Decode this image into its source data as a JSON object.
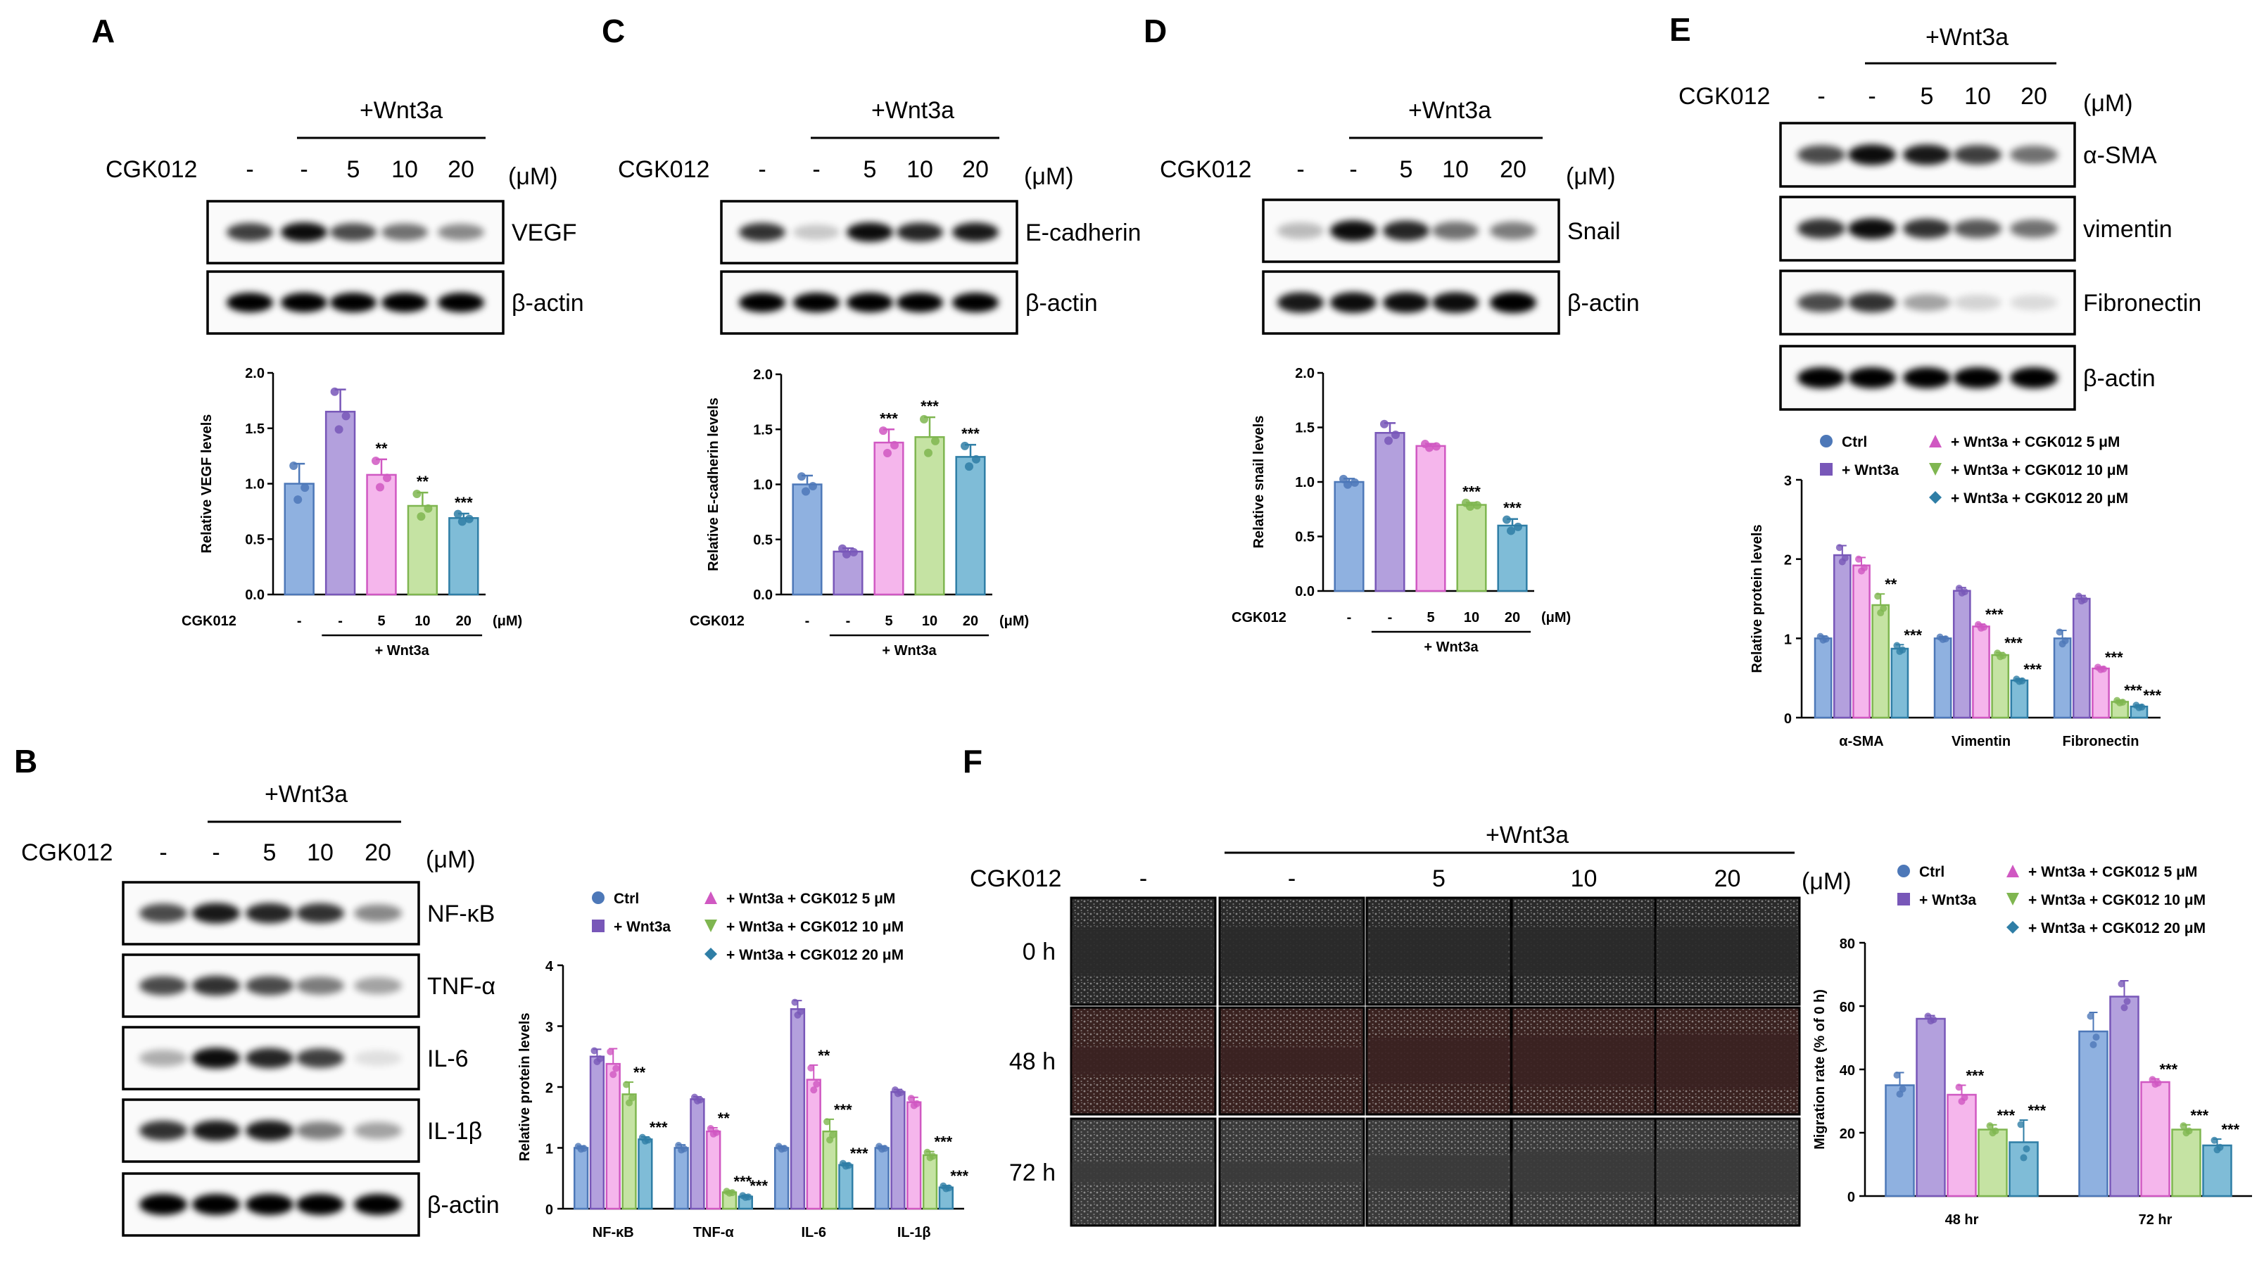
{
  "colors": {
    "ctrl": "#8fb1e0",
    "ctrl_edge": "#4d78b8",
    "wnt": "#b3a0dd",
    "wnt_edge": "#7857b8",
    "c5": "#f5b6ec",
    "c5_edge": "#d058c2",
    "c10": "#c5e3a3",
    "c10_edge": "#7fb650",
    "c20": "#7fbcd7",
    "c20_edge": "#2f7ea6"
  },
  "panels": {
    "A": {
      "label": "A",
      "wnt_label": "+Wnt3a",
      "cgk_label": "CGK012",
      "doses": [
        "-",
        "-",
        "5",
        "10",
        "20"
      ],
      "unit": "(μM)",
      "blots": [
        "VEGF",
        "β-actin"
      ],
      "chart_data": {
        "type": "bar",
        "categories": [
          "-",
          "-",
          "5",
          "10",
          "20"
        ],
        "values": [
          1.0,
          1.65,
          1.08,
          0.8,
          0.69
        ],
        "errors": [
          0.18,
          0.2,
          0.14,
          0.12,
          0.04
        ],
        "significance": [
          "",
          "",
          "**",
          "**",
          "***"
        ],
        "ylabel": "Relative VEGF levels",
        "ylim": [
          0,
          2.0
        ],
        "yticks": [
          "0.0",
          "0.5",
          "1.0",
          "1.5",
          "2.0"
        ],
        "xlabel_prefix": "CGK012",
        "xunit": "(μM)",
        "group_label": "+ Wnt3a"
      }
    },
    "C": {
      "label": "C",
      "wnt_label": "+Wnt3a",
      "cgk_label": "CGK012",
      "doses": [
        "-",
        "-",
        "5",
        "10",
        "20"
      ],
      "unit": "(μM)",
      "blots": [
        "E-cadherin",
        "β-actin"
      ],
      "chart_data": {
        "type": "bar",
        "categories": [
          "-",
          "-",
          "5",
          "10",
          "20"
        ],
        "values": [
          1.0,
          0.39,
          1.38,
          1.43,
          1.25
        ],
        "errors": [
          0.08,
          0.03,
          0.12,
          0.18,
          0.11
        ],
        "significance": [
          "",
          "",
          "***",
          "***",
          "***"
        ],
        "ylabel": "Relative E-cadherin levels",
        "ylim": [
          0,
          2.0
        ],
        "yticks": [
          "0.0",
          "0.5",
          "1.0",
          "1.5",
          "2.0"
        ],
        "xlabel_prefix": "CGK012",
        "xunit": "(μM)",
        "group_label": "+ Wnt3a"
      }
    },
    "D": {
      "label": "D",
      "wnt_label": "+Wnt3a",
      "cgk_label": "CGK012",
      "doses": [
        "-",
        "-",
        "5",
        "10",
        "20"
      ],
      "unit": "(μM)",
      "blots": [
        "Snail",
        "β-actin"
      ],
      "chart_data": {
        "type": "bar",
        "categories": [
          "-",
          "-",
          "5",
          "10",
          "20"
        ],
        "values": [
          1.0,
          1.45,
          1.33,
          0.79,
          0.6
        ],
        "errors": [
          0.03,
          0.09,
          0.02,
          0.02,
          0.06
        ],
        "significance": [
          "",
          "",
          "",
          "***",
          "***"
        ],
        "ylabel": "Relative snail levels",
        "ylim": [
          0,
          2.0
        ],
        "yticks": [
          "0.0",
          "0.5",
          "1.0",
          "1.5",
          "2.0"
        ],
        "xlabel_prefix": "CGK012",
        "xunit": "(μM)",
        "group_label": "+ Wnt3a"
      }
    },
    "E": {
      "label": "E",
      "wnt_label": "+Wnt3a",
      "cgk_label": "CGK012",
      "doses": [
        "-",
        "-",
        "5",
        "10",
        "20"
      ],
      "unit": "(μM)",
      "blots": [
        "α-SMA",
        "vimentin",
        "Fibronectin",
        "β-actin"
      ],
      "chart_data": {
        "type": "bar",
        "categories": [
          "α-SMA",
          "Vimentin",
          "Fibronectin"
        ],
        "series": [
          {
            "name": "Ctrl",
            "values": [
              1.0,
              1.0,
              1.0
            ],
            "errors": [
              0.03,
              0.02,
              0.1
            ],
            "sig": [
              "",
              "",
              ""
            ]
          },
          {
            "name": "+ Wnt3a",
            "values": [
              2.05,
              1.6,
              1.5
            ],
            "errors": [
              0.12,
              0.04,
              0.04
            ],
            "sig": [
              "",
              "",
              ""
            ]
          },
          {
            "name": "+ Wnt3a + CGK012 5 μM",
            "values": [
              1.92,
              1.15,
              0.62
            ],
            "errors": [
              0.1,
              0.03,
              0.02
            ],
            "sig": [
              "",
              "***",
              "***"
            ]
          },
          {
            "name": "+ Wnt3a + CGK012 10 μM",
            "values": [
              1.42,
              0.79,
              0.2
            ],
            "errors": [
              0.14,
              0.03,
              0.02
            ],
            "sig": [
              "**",
              "***",
              "***"
            ]
          },
          {
            "name": "+ Wnt3a + CGK012 20 μM",
            "values": [
              0.87,
              0.47,
              0.14
            ],
            "errors": [
              0.05,
              0.02,
              0.02
            ],
            "sig": [
              "***",
              "***",
              "***"
            ]
          }
        ],
        "ylabel": "Relative protein levels",
        "ylim": [
          0,
          3
        ],
        "yticks": [
          "0",
          "1",
          "2",
          "3"
        ],
        "legend": "top"
      }
    },
    "B": {
      "label": "B",
      "wnt_label": "+Wnt3a",
      "cgk_label": "CGK012",
      "doses": [
        "-",
        "-",
        "5",
        "10",
        "20"
      ],
      "unit": "(μM)",
      "blots": [
        "NF-κB",
        "TNF-α",
        "IL-6",
        "IL-1β",
        "β-actin"
      ],
      "chart_data": {
        "type": "bar",
        "categories": [
          "NF-κB",
          "TNF-α",
          "IL-6",
          "IL-1β"
        ],
        "series": [
          {
            "name": "Ctrl",
            "values": [
              1.0,
              1.0,
              1.0,
              1.0
            ],
            "errors": [
              0.03,
              0.05,
              0.03,
              0.03
            ],
            "sig": [
              "",
              "",
              "",
              ""
            ]
          },
          {
            "name": "+ Wnt3a",
            "values": [
              2.5,
              1.8,
              3.28,
              1.92
            ],
            "errors": [
              0.12,
              0.04,
              0.14,
              0.04
            ],
            "sig": [
              "",
              "",
              "",
              ""
            ]
          },
          {
            "name": "+ Wnt3a + CGK012 5 μM",
            "values": [
              2.38,
              1.27,
              2.12,
              1.75
            ],
            "errors": [
              0.25,
              0.06,
              0.24,
              0.08
            ],
            "sig": [
              "",
              "**",
              "**",
              ""
            ]
          },
          {
            "name": "+ Wnt3a + CGK012 10 μM",
            "values": [
              1.88,
              0.27,
              1.27,
              0.88
            ],
            "errors": [
              0.2,
              0.02,
              0.2,
              0.06
            ],
            "sig": [
              "**",
              "***",
              "***",
              "***"
            ]
          },
          {
            "name": "+ Wnt3a + CGK012 20 μM",
            "values": [
              1.14,
              0.2,
              0.72,
              0.35
            ],
            "errors": [
              0.04,
              0.02,
              0.03,
              0.03
            ],
            "sig": [
              "***",
              "***",
              "***",
              "***"
            ]
          }
        ],
        "ylabel": "Relative protein levels",
        "ylim": [
          0,
          4
        ],
        "yticks": [
          "0",
          "1",
          "2",
          "3",
          "4"
        ],
        "legend": "top"
      }
    },
    "F": {
      "label": "F",
      "wnt_label": "+Wnt3a",
      "cgk_label": "CGK012",
      "doses": [
        "-",
        "-",
        "5",
        "10",
        "20"
      ],
      "unit": "(μM)",
      "times": [
        "0 h",
        "48 h",
        "72 h"
      ],
      "chart_data": {
        "type": "bar",
        "categories": [
          "48 hr",
          "72 hr"
        ],
        "series": [
          {
            "name": "Ctrl",
            "values": [
              35,
              52
            ],
            "errors": [
              4,
              6
            ],
            "sig": [
              "",
              ""
            ]
          },
          {
            "name": "+ Wnt3a",
            "values": [
              56,
              63
            ],
            "errors": [
              1,
              5
            ],
            "sig": [
              "",
              ""
            ]
          },
          {
            "name": "+ Wnt3a + CGK012 5 μM",
            "values": [
              32,
              36
            ],
            "errors": [
              3,
              1
            ],
            "sig": [
              "***",
              "***"
            ]
          },
          {
            "name": "+ Wnt3a + CGK012 10 μM",
            "values": [
              21,
              21
            ],
            "errors": [
              1.5,
              1.5
            ],
            "sig": [
              "***",
              "***"
            ]
          },
          {
            "name": "+ Wnt3a + CGK012 20 μM",
            "values": [
              17,
              16
            ],
            "errors": [
              7,
              2
            ],
            "sig": [
              "***",
              "***"
            ]
          }
        ],
        "ylabel": "Migration rate (% of 0 h)",
        "ylim": [
          0,
          80
        ],
        "yticks": [
          "0",
          "20",
          "40",
          "60",
          "80"
        ],
        "legend": "top"
      }
    }
  }
}
